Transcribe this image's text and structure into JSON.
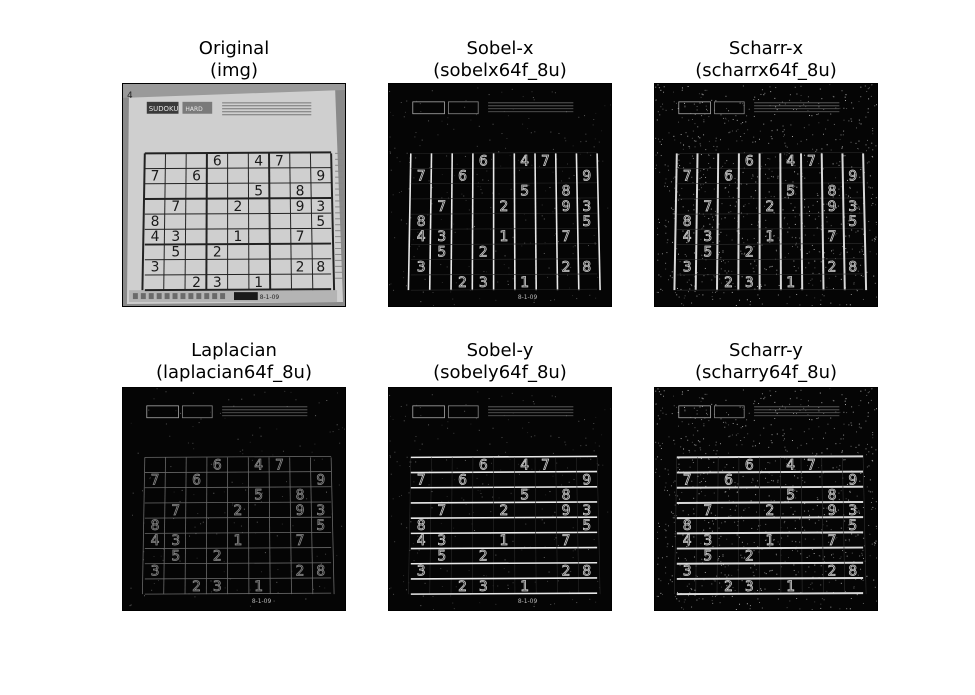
{
  "panels": [
    {
      "title": "Original",
      "subtitle": "(img)",
      "kind": "original",
      "header_labels": {
        "brand": "SUDOKU",
        "level": "HARD",
        "footer": "8-1-09",
        "corner": "4"
      }
    },
    {
      "title": "Sobel-x",
      "subtitle": "(sobelx64f_8u)",
      "kind": "edge-x",
      "header_labels": {
        "footer": "8-1-09"
      }
    },
    {
      "title": "Scharr-x",
      "subtitle": "(scharrx64f_8u)",
      "kind": "edge-x-noisy"
    },
    {
      "title": "Laplacian",
      "subtitle": "(laplacian64f_8u)",
      "kind": "laplacian",
      "header_labels": {
        "footer": "8-1-09"
      }
    },
    {
      "title": "Sobel-y",
      "subtitle": "(sobely64f_8u)",
      "kind": "edge-y",
      "header_labels": {
        "footer": "8-1-09"
      }
    },
    {
      "title": "Scharr-y",
      "subtitle": "(scharry64f_8u)",
      "kind": "edge-y-noisy"
    }
  ],
  "sudoku_digits": [
    [
      0,
      0,
      0,
      6,
      0,
      4,
      7,
      0,
      0
    ],
    [
      7,
      0,
      6,
      0,
      0,
      0,
      0,
      0,
      9
    ],
    [
      0,
      0,
      0,
      0,
      0,
      5,
      0,
      8,
      0
    ],
    [
      0,
      7,
      0,
      0,
      2,
      0,
      0,
      9,
      3
    ],
    [
      8,
      0,
      0,
      0,
      0,
      0,
      0,
      0,
      5
    ],
    [
      4,
      3,
      0,
      0,
      1,
      0,
      0,
      7,
      0
    ],
    [
      0,
      5,
      0,
      2,
      0,
      0,
      0,
      0,
      0
    ],
    [
      3,
      0,
      0,
      0,
      0,
      0,
      0,
      2,
      8
    ],
    [
      0,
      0,
      2,
      3,
      0,
      1,
      0,
      0,
      0
    ]
  ]
}
